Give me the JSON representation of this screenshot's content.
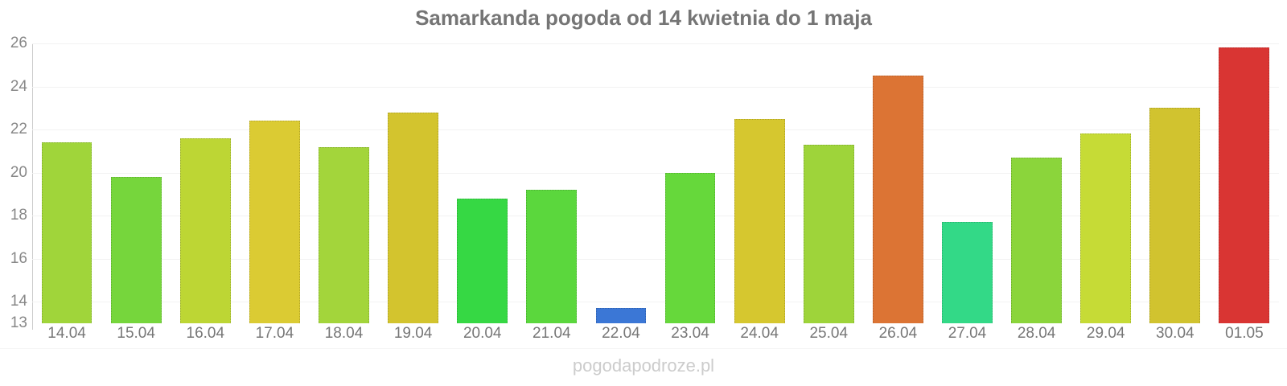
{
  "title": "Samarkanda pogoda od 14 kwietnia do 1 maja",
  "watermark": "pogodapodroze.pl",
  "ui_colors": {
    "title_text": "#757575",
    "y_axis_labels": "#888888",
    "x_axis_labels": "#777777",
    "axis_line": "#cccccc",
    "gridline": "#f2f2f2",
    "watermark_text": "#cccccc",
    "background": "#ffffff"
  },
  "chart_data": {
    "type": "bar",
    "title": "Samarkanda pogoda od 14 kwietnia do 1 maja",
    "xlabel": "",
    "ylabel": "",
    "legend": "none",
    "grid": "horizontal-faint",
    "ylim": [
      13,
      26
    ],
    "yticks": [
      13,
      14,
      16,
      18,
      20,
      22,
      24,
      26
    ],
    "categories": [
      "14.04",
      "15.04",
      "16.04",
      "17.04",
      "18.04",
      "19.04",
      "20.04",
      "21.04",
      "22.04",
      "23.04",
      "24.04",
      "25.04",
      "26.04",
      "27.04",
      "28.04",
      "29.04",
      "30.04",
      "01.05"
    ],
    "values": [
      21.4,
      19.8,
      21.6,
      22.4,
      21.2,
      22.8,
      18.8,
      19.2,
      13.7,
      20.0,
      22.5,
      21.3,
      24.5,
      17.7,
      20.7,
      21.8,
      23.0,
      25.8
    ],
    "bar_colors": [
      "#A0D53A",
      "#76D63C",
      "#BDD634",
      "#DBCB33",
      "#A3D53B",
      "#D3C42E",
      "#36D844",
      "#5BD73D",
      "#3B77D6",
      "#66D83B",
      "#D6C72F",
      "#9ED43A",
      "#DC7434",
      "#33D987",
      "#8BD53B",
      "#C6DB36",
      "#D1C32F",
      "#D93533"
    ]
  }
}
